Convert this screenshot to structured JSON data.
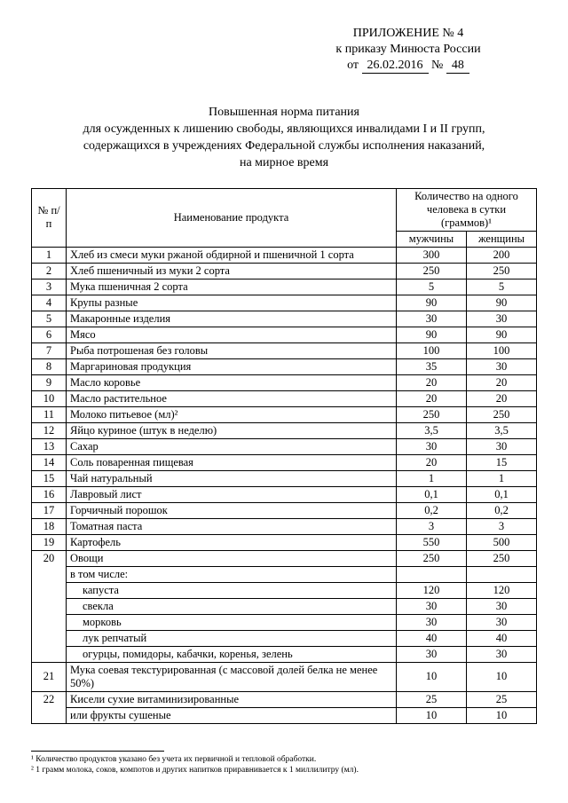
{
  "header": {
    "attachment": "ПРИЛОЖЕНИЕ № 4",
    "to_order": "к приказу Минюста России",
    "from_label": "от",
    "date": "26.02.2016",
    "num_label": "№",
    "number": "48"
  },
  "title": {
    "l1": "Повышенная норма питания",
    "l2": "для осужденных к лишению свободы, являющихся инвалидами I и II групп,",
    "l3": "содержащихся в учреждениях Федеральной службы исполнения наказаний,",
    "l4": "на мирное время"
  },
  "table": {
    "col_num": "№ п/п",
    "col_name": "Наименование продукта",
    "col_qty_top": "Количество на одного человека в сутки (граммов)¹",
    "col_men": "мужчины",
    "col_women": "женщины",
    "rows": [
      {
        "n": "1",
        "name": "Хлеб из смеси муки ржаной обдирной и пшеничной 1 сорта",
        "m": "300",
        "w": "200"
      },
      {
        "n": "2",
        "name": "Хлеб пшеничный из муки 2 сорта",
        "m": "250",
        "w": "250"
      },
      {
        "n": "3",
        "name": "Мука пшеничная 2 сорта",
        "m": "5",
        "w": "5"
      },
      {
        "n": "4",
        "name": "Крупы разные",
        "m": "90",
        "w": "90"
      },
      {
        "n": "5",
        "name": "Макаронные изделия",
        "m": "30",
        "w": "30"
      },
      {
        "n": "6",
        "name": "Мясо",
        "m": "90",
        "w": "90"
      },
      {
        "n": "7",
        "name": "Рыба потрошеная без головы",
        "m": "100",
        "w": "100"
      },
      {
        "n": "8",
        "name": "Маргариновая продукция",
        "m": "35",
        "w": "30"
      },
      {
        "n": "9",
        "name": "Масло коровье",
        "m": "20",
        "w": "20"
      },
      {
        "n": "10",
        "name": "Масло растительное",
        "m": "20",
        "w": "20"
      },
      {
        "n": "11",
        "name": "Молоко питьевое (мл)²",
        "m": "250",
        "w": "250"
      },
      {
        "n": "12",
        "name": "Яйцо куриное (штук в неделю)",
        "m": "3,5",
        "w": "3,5"
      },
      {
        "n": "13",
        "name": "Сахар",
        "m": "30",
        "w": "30"
      },
      {
        "n": "14",
        "name": "Соль поваренная пищевая",
        "m": "20",
        "w": "15"
      },
      {
        "n": "15",
        "name": "Чай натуральный",
        "m": "1",
        "w": "1"
      },
      {
        "n": "16",
        "name": "Лавровый лист",
        "m": "0,1",
        "w": "0,1"
      },
      {
        "n": "17",
        "name": "Горчичный порошок",
        "m": "0,2",
        "w": "0,2"
      },
      {
        "n": "18",
        "name": "Томатная паста",
        "m": "3",
        "w": "3"
      },
      {
        "n": "19",
        "name": "Картофель",
        "m": "550",
        "w": "500"
      }
    ],
    "row20": {
      "n": "20",
      "name": "Овощи",
      "m": "250",
      "w": "250",
      "incl": "в том числе:",
      "subs": [
        {
          "name": "капуста",
          "m": "120",
          "w": "120"
        },
        {
          "name": "свекла",
          "m": "30",
          "w": "30"
        },
        {
          "name": "морковь",
          "m": "30",
          "w": "30"
        },
        {
          "name": "лук репчатый",
          "m": "40",
          "w": "40"
        },
        {
          "name": "огурцы, помидоры, кабачки, коренья, зелень",
          "m": "30",
          "w": "30"
        }
      ]
    },
    "row21": {
      "n": "21",
      "name": "Мука соевая текстурированная (с массовой долей белка не менее 50%)",
      "m": "10",
      "w": "10"
    },
    "row22": {
      "n": "22",
      "name": "Кисели сухие витаминизированные",
      "m": "25",
      "w": "25",
      "or": "или фрукты сушеные",
      "om": "10",
      "ow": "10"
    }
  },
  "footnotes": {
    "f1": "¹ Количество продуктов указано без учета их первичной и тепловой обработки.",
    "f2": "² 1 грамм молока, соков, компотов и других напитков приравнивается к 1 миллилитру (мл)."
  }
}
